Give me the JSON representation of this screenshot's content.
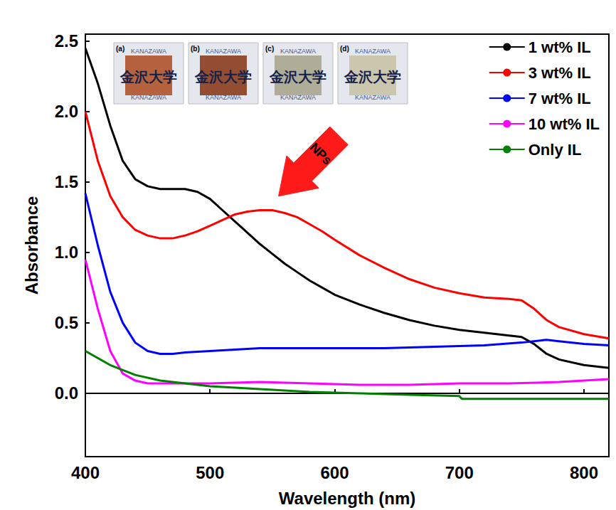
{
  "chart_data": {
    "type": "line",
    "x_label": "Wavelength (nm)",
    "y_label": "Absorbance",
    "xlim": [
      400,
      820
    ],
    "xticks": [
      400,
      500,
      600,
      700,
      800
    ],
    "ylim": [
      -0.45,
      2.55
    ],
    "yticks": [
      {
        "value": 0,
        "label": "0.0"
      },
      {
        "value": 0.5,
        "label": "0.5"
      },
      {
        "value": 1,
        "label": "1.0"
      },
      {
        "value": 1.5,
        "label": "1.5"
      },
      {
        "value": 2,
        "label": "2.0"
      },
      {
        "value": 2.5,
        "label": "2.5"
      }
    ],
    "grid": false,
    "legend": "top-right",
    "series": [
      {
        "name": "1 wt% IL",
        "color": "#000000",
        "x": [
          400,
          410,
          420,
          430,
          440,
          450,
          460,
          470,
          480,
          490,
          500,
          510,
          520,
          530,
          540,
          550,
          560,
          570,
          580,
          590,
          600,
          620,
          640,
          660,
          680,
          700,
          720,
          740,
          750,
          760,
          770,
          780,
          800,
          820
        ],
        "values": [
          2.45,
          2.2,
          1.9,
          1.65,
          1.52,
          1.47,
          1.45,
          1.45,
          1.45,
          1.43,
          1.38,
          1.3,
          1.22,
          1.14,
          1.06,
          0.99,
          0.92,
          0.86,
          0.8,
          0.75,
          0.7,
          0.63,
          0.57,
          0.52,
          0.48,
          0.45,
          0.43,
          0.41,
          0.4,
          0.35,
          0.28,
          0.24,
          0.2,
          0.18
        ]
      },
      {
        "name": "3 wt% IL",
        "color": "#ff0000",
        "x": [
          400,
          410,
          420,
          430,
          440,
          450,
          460,
          470,
          480,
          490,
          500,
          510,
          520,
          530,
          540,
          550,
          560,
          570,
          580,
          590,
          600,
          620,
          640,
          660,
          680,
          700,
          720,
          740,
          750,
          760,
          770,
          780,
          800,
          820
        ],
        "values": [
          2.0,
          1.65,
          1.4,
          1.25,
          1.16,
          1.12,
          1.1,
          1.1,
          1.12,
          1.15,
          1.19,
          1.23,
          1.27,
          1.29,
          1.3,
          1.3,
          1.28,
          1.25,
          1.2,
          1.15,
          1.09,
          0.98,
          0.89,
          0.81,
          0.75,
          0.71,
          0.68,
          0.67,
          0.66,
          0.6,
          0.52,
          0.47,
          0.42,
          0.39
        ]
      },
      {
        "name": "7 wt% IL",
        "color": "#0000ff",
        "x": [
          400,
          410,
          420,
          430,
          440,
          450,
          460,
          470,
          480,
          500,
          520,
          540,
          560,
          600,
          640,
          680,
          720,
          750,
          770,
          780,
          800,
          820
        ],
        "values": [
          1.42,
          1.05,
          0.72,
          0.5,
          0.36,
          0.3,
          0.28,
          0.28,
          0.29,
          0.3,
          0.31,
          0.32,
          0.32,
          0.32,
          0.32,
          0.33,
          0.34,
          0.36,
          0.38,
          0.37,
          0.35,
          0.34
        ]
      },
      {
        "name": "10 wt% IL",
        "color": "#ff00ff",
        "x": [
          400,
          410,
          420,
          430,
          440,
          450,
          470,
          500,
          540,
          580,
          620,
          660,
          700,
          740,
          780,
          820
        ],
        "values": [
          0.95,
          0.6,
          0.3,
          0.14,
          0.09,
          0.07,
          0.07,
          0.07,
          0.08,
          0.07,
          0.06,
          0.06,
          0.07,
          0.07,
          0.08,
          0.1
        ]
      },
      {
        "name": "Only IL",
        "color": "#008000",
        "x": [
          400,
          420,
          440,
          460,
          480,
          500,
          540,
          580,
          620,
          660,
          700,
          702,
          740,
          780,
          820
        ],
        "values": [
          0.3,
          0.2,
          0.13,
          0.09,
          0.07,
          0.05,
          0.03,
          0.01,
          0.0,
          -0.01,
          -0.02,
          -0.04,
          -0.04,
          -0.04,
          -0.04
        ]
      }
    ],
    "annotation": {
      "text": "NPs",
      "x": 555,
      "y": 1.4
    },
    "insets": {
      "labels": [
        "(a)",
        "(b)",
        "(c)",
        "(d)"
      ],
      "text": "金沢大学",
      "subtext": "KANAZAWA"
    }
  }
}
